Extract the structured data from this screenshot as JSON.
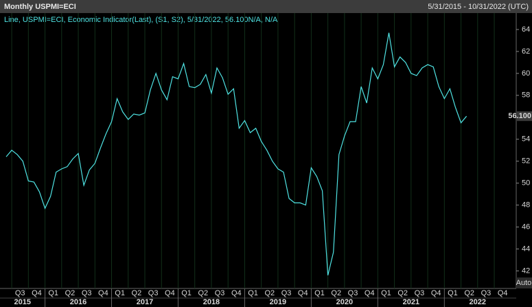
{
  "header": {
    "title": "Monthly USPMI=ECI",
    "range": "5/31/2015 - 10/31/2022 (UTC)"
  },
  "chart_data": {
    "type": "line",
    "legend": "Line, USPMI=ECI, Economic Indicator(Last), (S1, S2), 5/31/2022, 56.100N/A, N/A",
    "series": [
      {
        "color": "#4fe3e3",
        "values": [
          52.4,
          53.0,
          52.6,
          52.0,
          50.2,
          50.1,
          49.2,
          47.7,
          48.8,
          51.0,
          51.3,
          51.5,
          52.2,
          52.7,
          49.8,
          51.2,
          51.8,
          53.2,
          54.5,
          55.6,
          57.7,
          56.5,
          55.8,
          56.3,
          56.2,
          56.4,
          58.5,
          60.0,
          58.5,
          57.6,
          59.7,
          59.5,
          60.9,
          58.8,
          58.7,
          59.0,
          59.9,
          58.2,
          60.5,
          59.6,
          58.1,
          58.6,
          55.0,
          55.7,
          54.6,
          55.0,
          53.8,
          53.0,
          52.0,
          51.3,
          51.0,
          48.6,
          48.2,
          48.2,
          48.0,
          51.4,
          50.6,
          49.3,
          41.6,
          43.7,
          52.6,
          54.3,
          55.6,
          55.6,
          58.8,
          57.3,
          60.5,
          59.5,
          60.8,
          63.7,
          60.6,
          61.5,
          61.0,
          60.0,
          59.8,
          60.5,
          60.8,
          60.6,
          58.8,
          57.7,
          58.6,
          56.9,
          55.5,
          56.1
        ]
      }
    ],
    "last_label": {
      "value": 56.1,
      "label": "56.100"
    },
    "ylim": [
      40.4,
      65.5
    ],
    "yticks": [
      42,
      44,
      46,
      48,
      50,
      52,
      54,
      56,
      58,
      60,
      62,
      64
    ],
    "quarters": [
      "Q3",
      "Q4",
      "Q1",
      "Q2",
      "Q3",
      "Q4",
      "Q1",
      "Q2",
      "Q3",
      "Q4",
      "Q1",
      "Q2",
      "Q3",
      "Q4",
      "Q1",
      "Q2",
      "Q3",
      "Q4",
      "Q1",
      "Q2",
      "Q3",
      "Q4",
      "Q1",
      "Q2",
      "Q3",
      "Q4",
      "Q1",
      "Q2",
      "Q3",
      "Q4"
    ],
    "years": [
      "2015",
      "2016",
      "2017",
      "2018",
      "2019",
      "2020",
      "2021",
      "2022"
    ],
    "grid": true
  },
  "auto_label": "Auto"
}
